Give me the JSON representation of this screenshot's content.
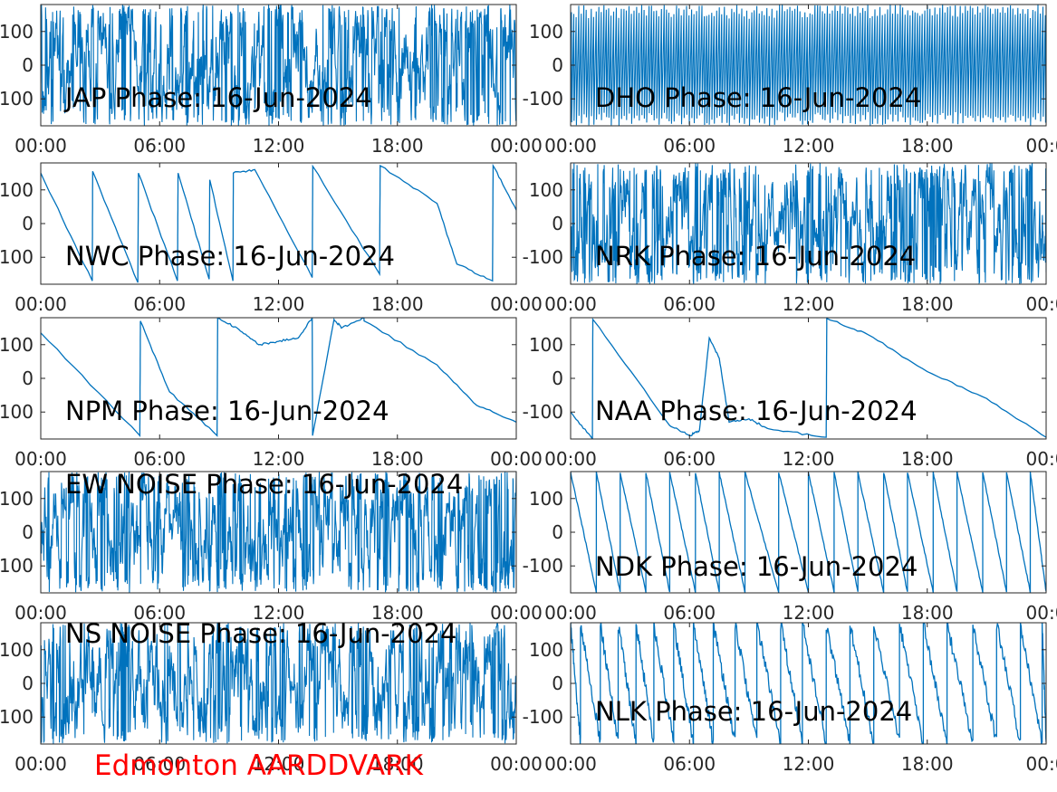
{
  "figure": {
    "footer": "Edmonton AARDDVARK",
    "footer_color": "#ff0000",
    "line_color": "#0072bd",
    "axis_color": "#262626"
  },
  "chart_data": [
    {
      "type": "line",
      "title": "JAP Phase: 16-Jun-2024",
      "x_ticks": [
        "00:00",
        "06:00",
        "12:00",
        "18:00",
        "00:00"
      ],
      "y_ticks": [
        "100",
        "0",
        "100"
      ],
      "ylim": [
        -180,
        180
      ],
      "xlim_hours": [
        0,
        24
      ],
      "pattern": "noise",
      "seed": 11,
      "y_values": [],
      "breakpoints_hours": []
    },
    {
      "type": "line",
      "title": "DHO Phase: 16-Jun-2024",
      "x_ticks": [
        "00:00",
        "06:00",
        "12:00",
        "18:00",
        "00:0"
      ],
      "y_ticks": [
        "100",
        "0",
        "-100"
      ],
      "ylim": [
        -180,
        180
      ],
      "xlim_hours": [
        0,
        24
      ],
      "pattern": "fastwrap",
      "seed": 12,
      "y_values": [],
      "breakpoints_hours": []
    },
    {
      "type": "line",
      "title": "NWC Phase: 16-Jun-2024",
      "x_ticks": [
        "00:00",
        "06:00",
        "12:00",
        "18:00",
        "00:00"
      ],
      "y_ticks": [
        "100",
        "0",
        "100"
      ],
      "ylim": [
        -180,
        180
      ],
      "xlim_hours": [
        0,
        24
      ],
      "pattern": "sawtooth",
      "breakpoints_hours": [
        2.6,
        4.9,
        6.9,
        8.5,
        9.7,
        13.7,
        17.1,
        22.8
      ],
      "y_values": [
        [
          0,
          150
        ],
        [
          2.6,
          -170
        ],
        [
          2.62,
          155
        ],
        [
          4.9,
          -175
        ],
        [
          4.93,
          150
        ],
        [
          6.9,
          -170
        ],
        [
          6.93,
          150
        ],
        [
          8.5,
          -165
        ],
        [
          8.53,
          130
        ],
        [
          9.7,
          -170
        ],
        [
          9.72,
          150
        ],
        [
          10.8,
          160
        ],
        [
          13.7,
          -160
        ],
        [
          13.73,
          170
        ],
        [
          17.1,
          -150
        ],
        [
          17.13,
          172
        ],
        [
          20.0,
          60
        ],
        [
          21.0,
          -120
        ],
        [
          22.8,
          -170
        ],
        [
          22.83,
          172
        ],
        [
          24.0,
          40
        ]
      ],
      "seed": 13
    },
    {
      "type": "line",
      "title": "NRK Phase: 16-Jun-2024",
      "x_ticks": [
        "00:00",
        "06:00",
        "12:00",
        "18:00",
        "00:0"
      ],
      "y_ticks": [
        "100",
        "0",
        "-100"
      ],
      "ylim": [
        -180,
        180
      ],
      "xlim_hours": [
        0,
        24
      ],
      "pattern": "noise",
      "seed": 14,
      "y_values": [],
      "breakpoints_hours": []
    },
    {
      "type": "line",
      "title": "NPM Phase: 16-Jun-2024",
      "x_ticks": [
        "00:00",
        "06:00",
        "12:00",
        "18:00",
        "00:00"
      ],
      "y_ticks": [
        "100",
        "0",
        "100"
      ],
      "ylim": [
        -180,
        180
      ],
      "xlim_hours": [
        0,
        24
      ],
      "pattern": "sawtooth",
      "breakpoints_hours": [
        5.0,
        8.9,
        13.7,
        16.3
      ],
      "y_values": [
        [
          0,
          135
        ],
        [
          5.0,
          -170
        ],
        [
          5.03,
          170
        ],
        [
          6.5,
          -40
        ],
        [
          8.9,
          -170
        ],
        [
          8.93,
          180
        ],
        [
          10.0,
          145
        ],
        [
          11.0,
          100
        ],
        [
          12.0,
          110
        ],
        [
          13.0,
          120
        ],
        [
          13.7,
          180
        ],
        [
          13.72,
          -170
        ],
        [
          14.8,
          175
        ],
        [
          15.2,
          150
        ],
        [
          16.3,
          180
        ],
        [
          16.33,
          170
        ],
        [
          20.0,
          40
        ],
        [
          22.0,
          -80
        ],
        [
          24.0,
          -130
        ]
      ],
      "seed": 15
    },
    {
      "type": "line",
      "title": "NAA Phase: 16-Jun-2024",
      "x_ticks": [
        "00:00",
        "06:00",
        "12:00",
        "18:00",
        "00:0"
      ],
      "y_ticks": [
        "100",
        "0",
        "-100"
      ],
      "ylim": [
        -180,
        180
      ],
      "xlim_hours": [
        0,
        24
      ],
      "pattern": "sawtooth",
      "breakpoints_hours": [
        1.1,
        12.9
      ],
      "y_values": [
        [
          0,
          -100
        ],
        [
          1.1,
          -180
        ],
        [
          1.12,
          175
        ],
        [
          5.0,
          -140
        ],
        [
          6.0,
          -170
        ],
        [
          6.5,
          -155
        ],
        [
          7.0,
          120
        ],
        [
          7.5,
          60
        ],
        [
          8.0,
          -130
        ],
        [
          9.0,
          -120
        ],
        [
          10.0,
          -150
        ],
        [
          12.9,
          -175
        ],
        [
          12.93,
          178
        ],
        [
          15.0,
          130
        ],
        [
          18.0,
          20
        ],
        [
          21.0,
          -60
        ],
        [
          24.0,
          -175
        ]
      ],
      "seed": 16
    },
    {
      "type": "line",
      "title": "EW NOISE Phase: 16-Jun-2024",
      "x_ticks": [
        "00:00",
        "06:00",
        "12:00",
        "18:00",
        "00:00"
      ],
      "y_ticks": [
        "100",
        "0",
        "100"
      ],
      "ylim": [
        -180,
        180
      ],
      "xlim_hours": [
        0,
        24
      ],
      "pattern": "noise",
      "seed": 17,
      "y_values": [],
      "breakpoints_hours": []
    },
    {
      "type": "line",
      "title": "NDK Phase: 16-Jun-2024",
      "x_ticks": [
        "00:00",
        "06:00",
        "12:00",
        "18:00",
        "00:0"
      ],
      "y_ticks": [
        "100",
        "0",
        "-100"
      ],
      "ylim": [
        -180,
        180
      ],
      "xlim_hours": [
        0,
        24
      ],
      "pattern": "sawtooth",
      "breakpoints_hours": [
        1.3,
        2.5,
        3.8,
        5.0,
        6.3,
        7.5,
        8.8,
        10.5,
        12.0,
        13.3,
        14.5,
        15.8,
        17.0,
        18.3,
        19.5,
        20.8,
        22.0,
        23.2
      ],
      "y_values": [],
      "seed": 18
    },
    {
      "type": "line",
      "title": "NS NOISE Phase: 16-Jun-2024",
      "x_ticks": [
        "00:00",
        "06:00",
        "12:00",
        "18:00",
        "00:00"
      ],
      "y_ticks": [
        "100",
        "0",
        "100"
      ],
      "ylim": [
        -180,
        180
      ],
      "xlim_hours": [
        0,
        24
      ],
      "pattern": "noise",
      "seed": 19,
      "y_values": [],
      "breakpoints_hours": []
    },
    {
      "type": "line",
      "title": "NLK Phase: 16-Jun-2024",
      "x_ticks": [
        "00:00",
        "06:00",
        "12:00",
        "18:00",
        "00:0"
      ],
      "y_ticks": [
        "100",
        "0",
        "-100"
      ],
      "ylim": [
        -180,
        180
      ],
      "xlim_hours": [
        0,
        24
      ],
      "pattern": "sawtooth",
      "breakpoints_hours": [
        0.5,
        1.5,
        2.4,
        3.3,
        4.2,
        5.2,
        6.2,
        7.2,
        8.3,
        9.4,
        10.6,
        11.7,
        12.9,
        14.1,
        15.3,
        16.6,
        17.8,
        19.0,
        20.3,
        21.5,
        22.7,
        23.8
      ],
      "y_values": [],
      "seed": 20
    }
  ]
}
